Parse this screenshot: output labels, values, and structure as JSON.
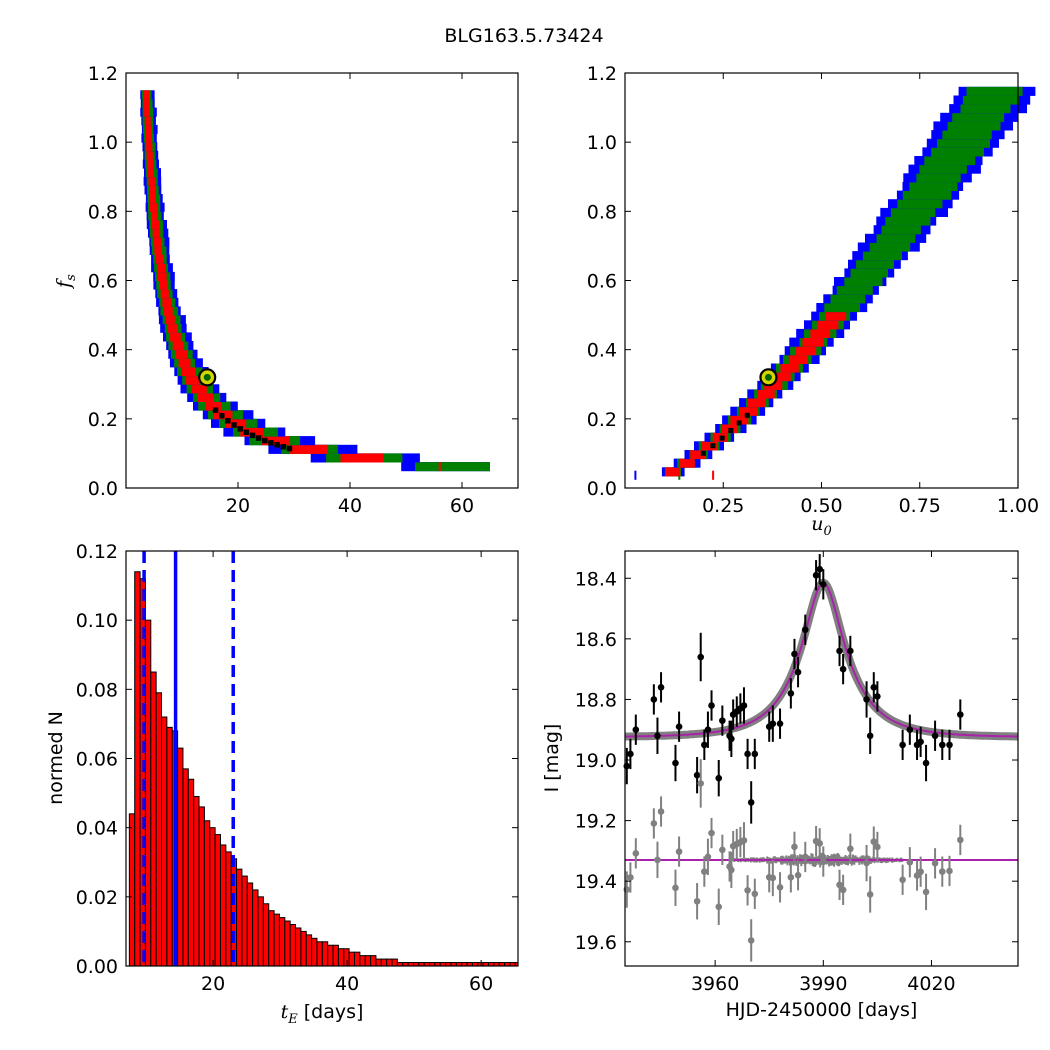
{
  "suptitle": "BLG163.5.73424",
  "colors": {
    "sigma1": "#ff0000",
    "sigma2": "#008000",
    "sigma3": "#0000ff",
    "ridge": "#000000",
    "best_marker_fill": "#d4d400",
    "hist_bar": "#ff0000",
    "median_line": "#0000ff",
    "data_point": "#000000",
    "residual_point": "#808080",
    "model_band": "#808080",
    "model_line": "#aa22aa"
  },
  "chart_data": [
    {
      "id": "fs-vs-tE",
      "type": "heatmap",
      "ylabel_main": "f",
      "ylabel_sub": "s",
      "xlim": [
        0,
        70
      ],
      "ylim": [
        0.0,
        1.2
      ],
      "xticks": [
        "20",
        "40",
        "60"
      ],
      "yticks": [
        "0.0",
        "0.2",
        "0.4",
        "0.6",
        "0.8",
        "1.0",
        "1.2"
      ],
      "best_fit": {
        "x": 14.5,
        "y": 0.32
      },
      "curve": {
        "A": 4.6,
        "B": -1.1,
        "xmax": 62.0,
        "ymax": 1.15
      },
      "widths": {
        "red": 0.09,
        "green": 0.16,
        "blue": 0.23
      }
    },
    {
      "id": "fs-vs-u0",
      "type": "heatmap",
      "xlabel_main": "u",
      "xlabel_sub": "0",
      "xlim": [
        0.0,
        1.0
      ],
      "ylim": [
        0.0,
        1.2
      ],
      "xticks": [
        "0.25",
        "0.50",
        "0.75",
        "1.00"
      ],
      "yticks": [
        "0.0",
        "0.2",
        "0.4",
        "0.6",
        "0.8",
        "1.0",
        "1.2"
      ],
      "best_fit": {
        "x": 0.365,
        "y": 0.32
      },
      "curve": {
        "x0": 0.05,
        "k": 1.32,
        "p": 1.38,
        "xmax": 0.86,
        "ymax": 1.15
      },
      "widths": {
        "red": 0.018,
        "green": 0.05,
        "blue": 0.072
      }
    },
    {
      "id": "tE-histogram",
      "type": "bar",
      "xlabel_main": "t",
      "xlabel_sub": "E",
      "xlabel_rest": " [days]",
      "ylabel": "normed N",
      "xlim": [
        7.0,
        65.5
      ],
      "ylim": [
        0.0,
        0.12
      ],
      "xticks": [
        "20",
        "40",
        "60"
      ],
      "yticks": [
        "0.00",
        "0.02",
        "0.04",
        "0.06",
        "0.08",
        "0.10",
        "0.12"
      ],
      "bin_start": 7.5,
      "bin_width": 0.8,
      "values": [
        0.044,
        0.114,
        0.112,
        0.1,
        0.085,
        0.079,
        0.072,
        0.069,
        0.068,
        0.063,
        0.057,
        0.054,
        0.049,
        0.046,
        0.042,
        0.04,
        0.038,
        0.035,
        0.033,
        0.031,
        0.028,
        0.026,
        0.024,
        0.022,
        0.02,
        0.018,
        0.016,
        0.015,
        0.014,
        0.013,
        0.012,
        0.011,
        0.01,
        0.009,
        0.008,
        0.007,
        0.007,
        0.006,
        0.006,
        0.005,
        0.005,
        0.004,
        0.004,
        0.003,
        0.003,
        0.003,
        0.002,
        0.002,
        0.002,
        0.002,
        0.001,
        0.001,
        0.001,
        0.001,
        0.001,
        0.001,
        0.001,
        0.001,
        0.001,
        0.001,
        0.001,
        0.001,
        0.001,
        0.001,
        0.001,
        0.001,
        0.001,
        0.001,
        0.001,
        0.001,
        0.001,
        0.001,
        0.001
      ],
      "median": 14.4,
      "lower": 9.7,
      "upper": 23.0
    },
    {
      "id": "light-curve",
      "type": "scatter",
      "xlabel": "HJD-2450000 [days]",
      "ylabel": "I [mag]",
      "xlim": [
        3935.0,
        4044.0
      ],
      "ylim": [
        19.68,
        18.31
      ],
      "xticks": [
        "3960",
        "3990",
        "4020"
      ],
      "xtick_values": [
        3960,
        3990,
        4020
      ],
      "yticks": [
        "18.4",
        "18.6",
        "18.8",
        "19.0",
        "19.2",
        "19.4",
        "19.6"
      ],
      "ytick_values": [
        18.4,
        18.6,
        18.8,
        19.0,
        19.2,
        19.4,
        19.6
      ],
      "model": {
        "t0": 3990.0,
        "tE": 14.4,
        "u0": 0.365,
        "fs": 0.32,
        "base": 18.925
      },
      "residual_offset": 19.33,
      "data": [
        [
          3935.5,
          19.02,
          0.06
        ],
        [
          3936.5,
          18.98,
          0.05
        ],
        [
          3938.0,
          18.9,
          0.05
        ],
        [
          3943.0,
          18.8,
          0.05
        ],
        [
          3944.0,
          18.92,
          0.06
        ],
        [
          3945.0,
          18.76,
          0.05
        ],
        [
          3949.0,
          19.01,
          0.06
        ],
        [
          3950.0,
          18.89,
          0.05
        ],
        [
          3955.0,
          19.05,
          0.06
        ],
        [
          3956.0,
          18.66,
          0.08
        ],
        [
          3957.0,
          18.95,
          0.05
        ],
        [
          3958.0,
          18.9,
          0.06
        ],
        [
          3959.0,
          18.82,
          0.05
        ],
        [
          3961.0,
          19.06,
          0.06
        ],
        [
          3962.0,
          18.87,
          0.05
        ],
        [
          3964.0,
          18.92,
          0.05
        ],
        [
          3964.5,
          18.93,
          0.06
        ],
        [
          3965.0,
          18.85,
          0.05
        ],
        [
          3966.0,
          18.84,
          0.05
        ],
        [
          3967.0,
          18.83,
          0.05
        ],
        [
          3968.0,
          18.82,
          0.06
        ],
        [
          3969.0,
          18.98,
          0.05
        ],
        [
          3970.0,
          19.14,
          0.07
        ],
        [
          3971.0,
          18.98,
          0.05
        ],
        [
          3975.0,
          18.89,
          0.05
        ],
        [
          3976.0,
          18.88,
          0.06
        ],
        [
          3978.0,
          18.88,
          0.05
        ],
        [
          3981.0,
          18.78,
          0.05
        ],
        [
          3982.0,
          18.65,
          0.05
        ],
        [
          3983.0,
          18.71,
          0.05
        ],
        [
          3985.0,
          18.57,
          0.05
        ],
        [
          3988.0,
          18.39,
          0.05
        ],
        [
          3989.0,
          18.37,
          0.05
        ],
        [
          3990.0,
          18.42,
          0.05
        ],
        [
          3994.5,
          18.64,
          0.05
        ],
        [
          3995.5,
          18.7,
          0.05
        ],
        [
          3997.5,
          18.64,
          0.05
        ],
        [
          4002.0,
          18.8,
          0.06
        ],
        [
          4003.0,
          18.92,
          0.06
        ],
        [
          4004.0,
          18.76,
          0.05
        ],
        [
          4005.0,
          18.79,
          0.05
        ],
        [
          4012.0,
          18.95,
          0.05
        ],
        [
          4014.0,
          18.9,
          0.05
        ],
        [
          4016.0,
          18.95,
          0.05
        ],
        [
          4017.0,
          18.94,
          0.05
        ],
        [
          4018.5,
          19.01,
          0.06
        ],
        [
          4021.0,
          18.92,
          0.05
        ],
        [
          4023.0,
          18.95,
          0.05
        ],
        [
          4025.0,
          18.95,
          0.05
        ],
        [
          4028.0,
          18.85,
          0.05
        ]
      ]
    }
  ]
}
